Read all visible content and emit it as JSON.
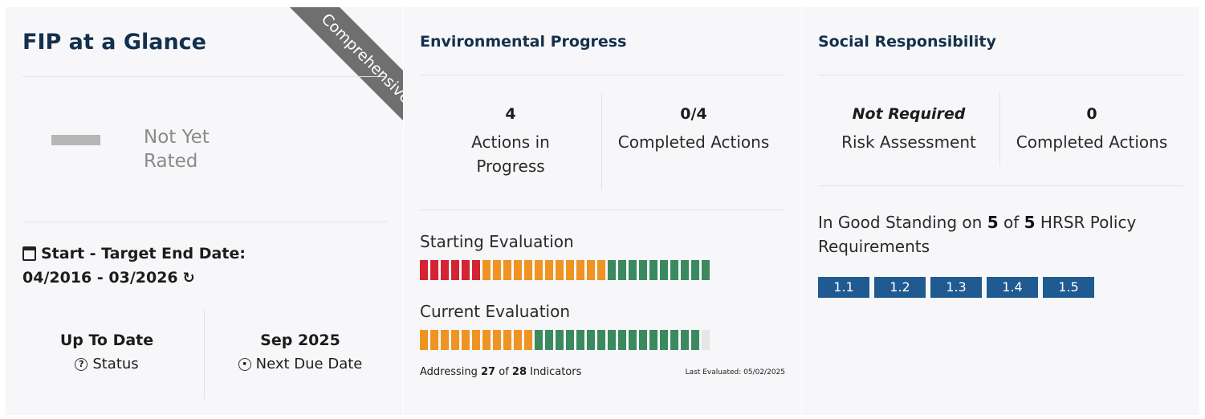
{
  "glance": {
    "title": "FIP at a Glance",
    "ribbon": "Comprehensive",
    "rating_line1": "Not Yet",
    "rating_line2": "Rated",
    "date_label": "Start - Target End Date:",
    "date_range": "04/2016 - 03/2026",
    "status_value": "Up To Date",
    "status_label": "Status",
    "due_value": "Sep 2025",
    "due_label": "Next Due Date",
    "icons": [
      "calendar-icon",
      "refresh-icon",
      "help-circle-icon",
      "clock-icon"
    ]
  },
  "environmental": {
    "title": "Environmental Progress",
    "actions_value": "4",
    "actions_label": "Actions in Progress",
    "completed_value": "0/4",
    "completed_label": "Completed Actions",
    "starting_label": "Starting Evaluation",
    "current_label": "Current Evaluation",
    "starting_segments": {
      "red": 6,
      "orange": 12,
      "green": 10,
      "gray": 0
    },
    "current_segments": {
      "red": 0,
      "orange": 11,
      "green": 16,
      "gray": 1
    },
    "footer_prefix": "Addressing",
    "footer_addressed": "27",
    "footer_of": "of",
    "footer_total": "28",
    "footer_suffix": "Indicators",
    "last_evaluated": "Last Evaluated: 05/02/2025",
    "colors": {
      "red": "#d42332",
      "orange": "#ef9322",
      "green": "#3b8a5f",
      "gray": "#e6e6e6"
    }
  },
  "social": {
    "title": "Social Responsibility",
    "risk_value": "Not Required",
    "risk_label": "Risk Assessment",
    "completed_value": "0",
    "completed_label": "Completed Actions",
    "standing_prefix": "In Good Standing on",
    "standing_count": "5",
    "standing_of": "of",
    "standing_total": "5",
    "standing_suffix": "HRSR Policy Requirements",
    "policies": [
      "1.1",
      "1.2",
      "1.3",
      "1.4",
      "1.5"
    ],
    "policy_color": "#1f5a91"
  }
}
